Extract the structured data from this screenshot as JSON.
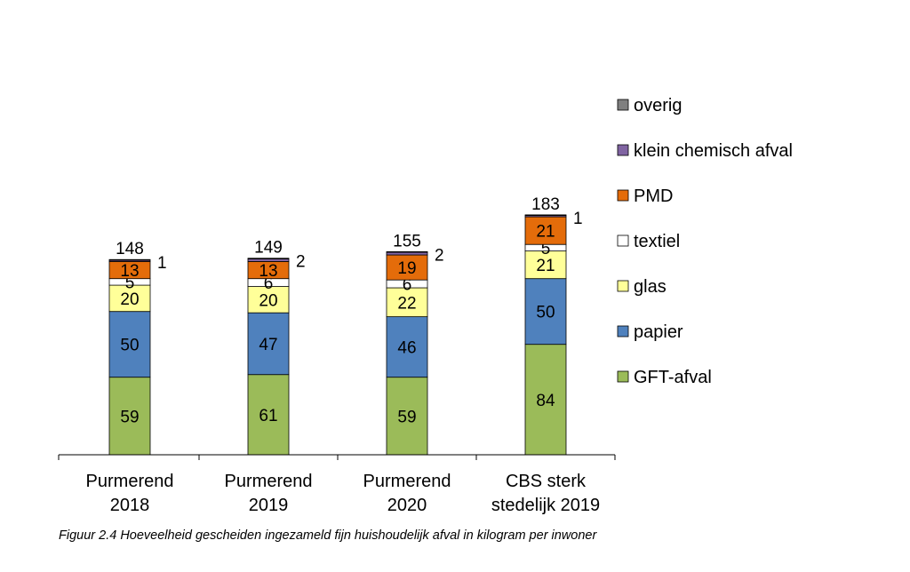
{
  "chart_data": {
    "type": "bar",
    "stacked": true,
    "categories": [
      [
        "Purmerend",
        "2018"
      ],
      [
        "Purmerend",
        "2019"
      ],
      [
        "Purmerend",
        "2020"
      ],
      [
        "CBS sterk",
        "stedelijk 2019"
      ]
    ],
    "series": [
      {
        "name": "GFT-afval",
        "color": "#9bbb59",
        "values": [
          59,
          61,
          59,
          84
        ]
      },
      {
        "name": "papier",
        "color": "#4f81bd",
        "values": [
          50,
          47,
          46,
          50
        ]
      },
      {
        "name": "glas",
        "color": "#ffff99",
        "values": [
          20,
          20,
          22,
          21
        ]
      },
      {
        "name": "textiel",
        "color": "#ffffff",
        "values": [
          5,
          6,
          6,
          5
        ]
      },
      {
        "name": "PMD",
        "color": "#e46c0a",
        "values": [
          13,
          13,
          19,
          21
        ]
      },
      {
        "name": "klein chemisch afval",
        "color": "#8064a2",
        "values": [
          1,
          2,
          2,
          1
        ]
      },
      {
        "name": "overig",
        "color": "#7f7f7f",
        "values": [
          0.5,
          0.5,
          0.5,
          0.5
        ]
      }
    ],
    "totals": [
      148,
      149,
      155,
      183
    ],
    "chemisch_labels": [
      "1",
      "2",
      "2",
      "1"
    ],
    "legend_position": "right",
    "grid": false
  },
  "caption": "Figuur 2.4 Hoeveelheid gescheiden ingezameld fijn huishoudelijk afval in kilogram per inwoner"
}
